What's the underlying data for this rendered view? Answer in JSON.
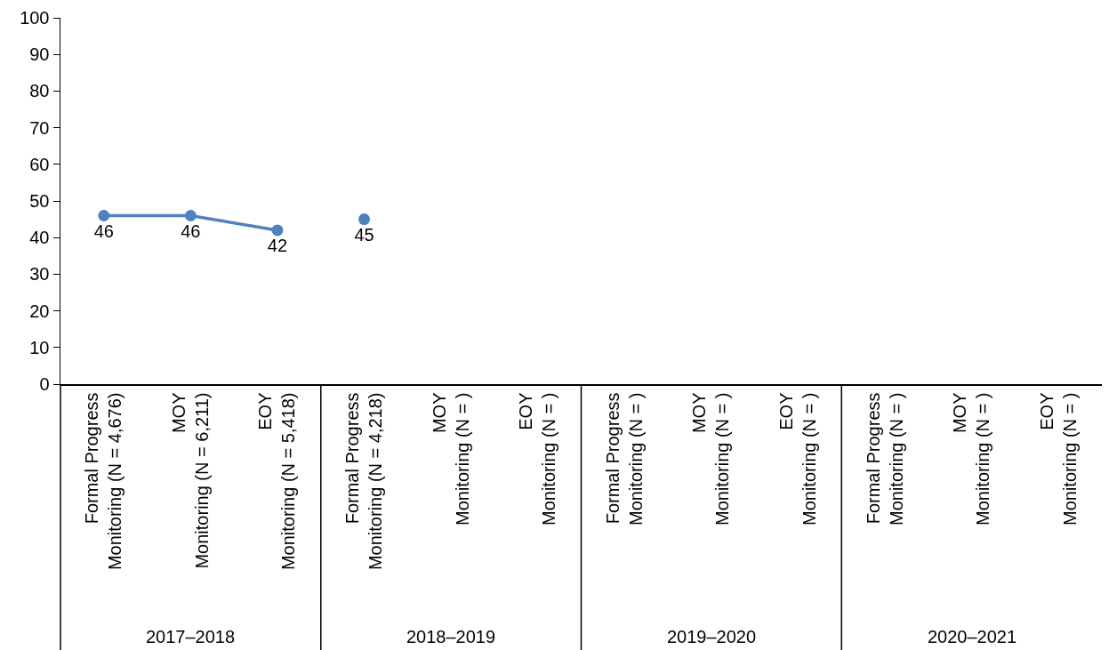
{
  "chart_data": {
    "type": "line",
    "categories": [
      "Formal Progress\nMonitoring (N = 4,676)",
      "MOY\nMonitoring (N = 6,211)",
      "EOY\nMonitoring (N = 5,418)",
      "Formal Progress\nMonitoring (N = 4,218)",
      "MOY\nMonitoring (N = )",
      "EOY\nMonitoring (N = )",
      "Formal Progress\nMonitoring (N = )",
      "MOY\nMonitoring (N = )",
      "EOY\nMonitoring (N = )",
      "Formal Progress\nMonitoring (N = )",
      "MOY\nMonitoring (N = )",
      "EOY\nMonitoring (N = )"
    ],
    "series": [
      {
        "color": "#4f81bd",
        "values": [
          46,
          46,
          42,
          null,
          null,
          null,
          null,
          null,
          null,
          null,
          null,
          null
        ]
      },
      {
        "color": "#4f81bd",
        "values": [
          null,
          null,
          null,
          45,
          null,
          null,
          null,
          null,
          null,
          null,
          null,
          null
        ]
      }
    ],
    "ylim": [
      0,
      100
    ],
    "yticks": [
      0,
      10,
      20,
      30,
      40,
      50,
      60,
      70,
      80,
      90,
      100
    ],
    "grid": false,
    "marker": "circle",
    "line_style": "solid",
    "data_labels": true,
    "annotations": [
      "2017–2018",
      "2018–2019",
      "2019–2020",
      "2020–2021"
    ]
  }
}
